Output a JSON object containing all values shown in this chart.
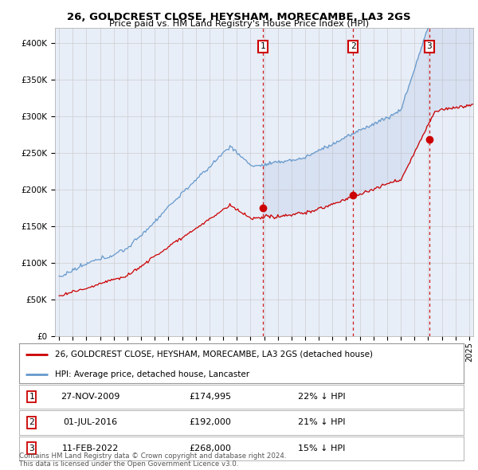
{
  "title": "26, GOLDCREST CLOSE, HEYSHAM, MORECAMBE, LA3 2GS",
  "subtitle": "Price paid vs. HM Land Registry's House Price Index (HPI)",
  "background_color": "#ffffff",
  "plot_bg_color": "#e8eef8",
  "ylabel": "",
  "ylim": [
    0,
    420000
  ],
  "yticks": [
    0,
    50000,
    100000,
    150000,
    200000,
    250000,
    300000,
    350000,
    400000
  ],
  "ytick_labels": [
    "£0",
    "£50K",
    "£100K",
    "£150K",
    "£200K",
    "£250K",
    "£300K",
    "£350K",
    "£400K"
  ],
  "legend_label_red": "26, GOLDCREST CLOSE, HEYSHAM, MORECAMBE, LA3 2GS (detached house)",
  "legend_label_blue": "HPI: Average price, detached house, Lancaster",
  "footer": "Contains HM Land Registry data © Crown copyright and database right 2024.\nThis data is licensed under the Open Government Licence v3.0.",
  "sale_prices": [
    174995,
    192000,
    268000
  ],
  "sale_labels": [
    "1",
    "2",
    "3"
  ],
  "sale_pct": [
    "22% ↓ HPI",
    "21% ↓ HPI",
    "15% ↓ HPI"
  ],
  "sale_date_labels": [
    "27-NOV-2009",
    "01-JUL-2016",
    "11-FEB-2022"
  ],
  "sale_price_labels": [
    "£174,995",
    "£192,000",
    "£268,000"
  ],
  "red_line_color": "#cc0000",
  "blue_line_color": "#6699cc",
  "fill_color": "#ddeeff",
  "dashed_line_color": "#cc0000",
  "marker_box_color": "#cc0000",
  "grid_color": "#cccccc",
  "table_border_color": "#999999"
}
